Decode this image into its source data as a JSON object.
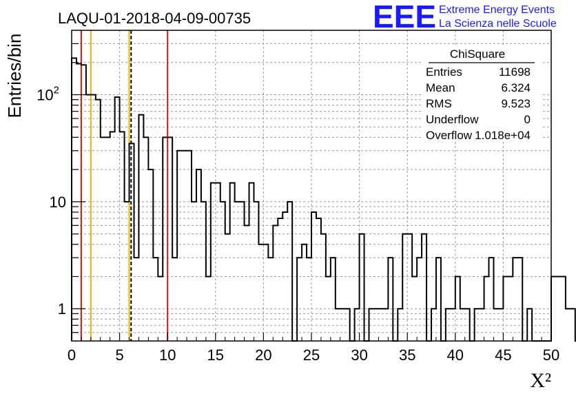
{
  "chart_data": {
    "type": "bar",
    "title": "LAQU-01-2018-04-09-00735",
    "xlabel": "X²",
    "ylabel": "Entries/bin",
    "xlim": [
      0,
      50
    ],
    "ylim": [
      0.5,
      400
    ],
    "yscale": "log",
    "grid": true,
    "bin_width": 0.5,
    "x_ticks": [
      "0",
      "5",
      "10",
      "15",
      "20",
      "25",
      "30",
      "35",
      "40",
      "45",
      "50"
    ],
    "y_ticks": [
      {
        "value": 1,
        "label": "1"
      },
      {
        "value": 10,
        "label": "10"
      },
      {
        "value": 100,
        "label": "10",
        "exponent": "2"
      }
    ],
    "values": [
      220,
      195,
      190,
      100,
      100,
      90,
      40,
      40,
      45,
      95,
      45,
      10,
      35,
      3,
      65,
      40,
      20,
      3,
      2,
      40,
      40,
      3,
      30,
      30,
      30,
      10,
      20,
      10,
      2,
      15,
      15,
      10,
      5,
      15,
      10,
      10,
      6,
      15,
      10,
      4,
      4,
      3,
      6,
      7,
      8,
      10,
      0,
      3,
      4,
      3,
      8,
      7,
      5,
      2,
      3,
      1,
      1,
      1,
      0,
      1,
      5,
      0,
      1,
      1,
      1,
      1,
      3,
      0,
      1,
      5,
      5,
      2,
      3,
      5,
      0,
      1,
      3,
      0,
      1,
      1,
      2,
      1,
      1,
      0,
      1,
      1,
      2,
      3,
      1,
      1,
      2,
      2,
      3,
      3,
      0,
      1,
      0,
      0,
      0,
      0,
      2,
      2,
      2,
      1,
      1,
      0,
      0,
      1,
      1,
      1,
      0,
      1,
      1,
      1,
      1,
      0,
      1,
      1,
      2,
      3,
      1,
      1,
      2,
      2,
      3,
      2,
      3,
      2,
      2,
      3,
      3,
      1,
      2,
      1,
      1,
      1,
      1,
      0,
      1,
      1,
      0,
      0,
      1,
      1,
      1,
      1,
      1,
      1,
      7,
      6
    ],
    "vertical_lines": [
      {
        "x": 1,
        "color": "#e01010"
      },
      {
        "x": 2,
        "color": "#f0b000"
      },
      {
        "x": 6,
        "color": "#f0b000"
      },
      {
        "x": 6.2,
        "color": "#000000",
        "style": "dashed"
      },
      {
        "x": 10,
        "color": "#e01010"
      }
    ],
    "stats_box": {
      "title": "ChiSquare",
      "rows": [
        {
          "label": "Entries",
          "value": "11698"
        },
        {
          "label": "Mean",
          "value": "6.324"
        },
        {
          "label": "RMS",
          "value": "9.523"
        },
        {
          "label": "Underflow",
          "value": "0"
        },
        {
          "label": "Overflow",
          "value": "1.018e+04"
        }
      ]
    },
    "logo": {
      "text": "EEE",
      "line1": "Extreme Energy Events",
      "line2": "La Scienza nelle Scuole"
    },
    "colors": {
      "histogram": "#000000",
      "grid": "#999999",
      "logo": "#1a1aff"
    }
  }
}
